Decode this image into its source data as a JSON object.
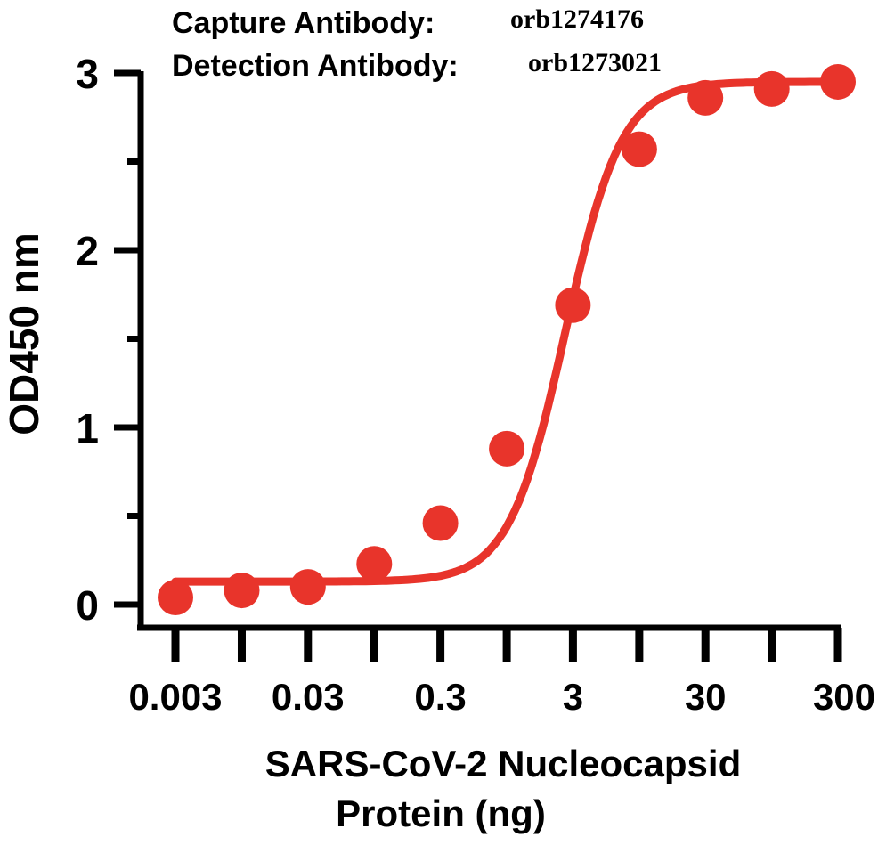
{
  "chart_data": {
    "type": "line",
    "annotations": [
      {
        "label": "Capture Antibody:",
        "value": "orb1274176"
      },
      {
        "label": "Detection Antibody:",
        "value": "orb1273021"
      }
    ],
    "xlabel_lines": [
      "SARS-CoV-2 Nucleocapsid",
      "Protein (ng)"
    ],
    "ylabel": "OD450 nm",
    "x_scale": "log",
    "xlim": [
      0.003,
      300
    ],
    "ylim": [
      0,
      3
    ],
    "x_ticks": [
      0.003,
      0.03,
      0.3,
      3,
      30,
      300
    ],
    "x_tick_labels": [
      "0.003",
      "0.03",
      "0.3",
      "3",
      "30",
      "300"
    ],
    "x_minor_ticks": [
      0.0095,
      0.095,
      0.95,
      9.5,
      95
    ],
    "y_ticks": [
      0,
      1,
      2,
      3
    ],
    "y_tick_labels": [
      "0",
      "1",
      "2",
      "3"
    ],
    "y_minor_ticks": [
      0.5,
      1.5,
      2.5
    ],
    "color": "#e8342b",
    "series": [
      {
        "x": [
          0.003,
          0.0095,
          0.03,
          0.095,
          0.3,
          0.95,
          3,
          9.5,
          30,
          95,
          300
        ],
        "y": [
          0.04,
          0.08,
          0.1,
          0.23,
          0.46,
          0.88,
          1.69,
          2.57,
          2.86,
          2.91,
          2.95
        ]
      }
    ],
    "grid": false,
    "legend": "none"
  }
}
